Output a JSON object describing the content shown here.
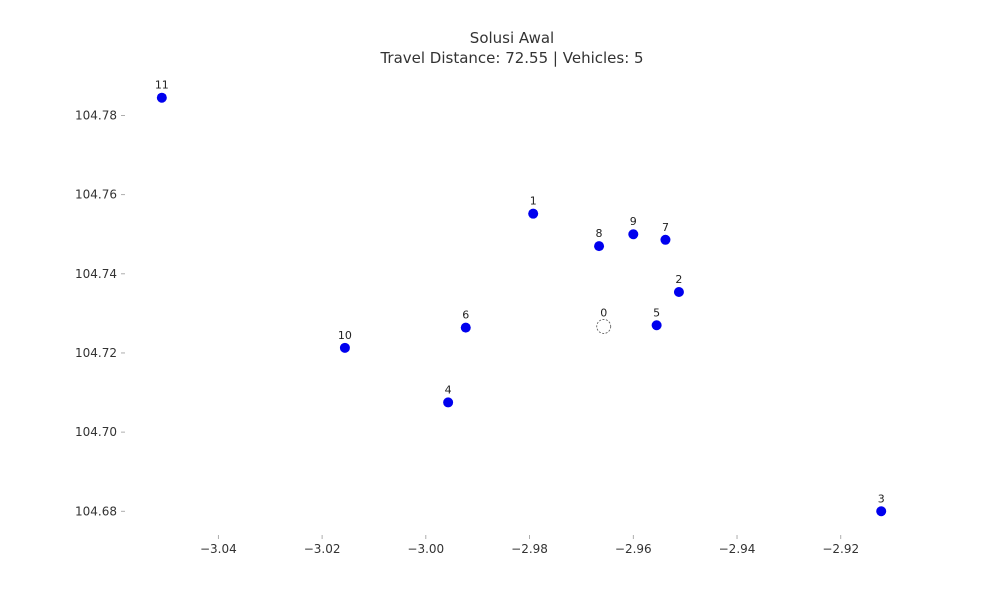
{
  "chart_data": {
    "type": "scatter",
    "title": "Solusi Awal",
    "subtitle": "Travel Distance: 72.55 | Vehicles: 5",
    "xlabel": "",
    "ylabel": "",
    "xlim": [
      -3.058,
      -2.908
    ],
    "ylim": [
      104.674,
      104.791
    ],
    "grid": false,
    "x_ticks": [
      {
        "value": -3.04,
        "label": "−3.04"
      },
      {
        "value": -3.02,
        "label": "−3.02"
      },
      {
        "value": -3.0,
        "label": "−3.00"
      },
      {
        "value": -2.98,
        "label": "−2.98"
      },
      {
        "value": -2.96,
        "label": "−2.96"
      },
      {
        "value": -2.94,
        "label": "−2.94"
      },
      {
        "value": -2.92,
        "label": "−2.92"
      }
    ],
    "y_ticks": [
      {
        "value": 104.68,
        "label": "104.68"
      },
      {
        "value": 104.7,
        "label": "104.70"
      },
      {
        "value": 104.72,
        "label": "104.72"
      },
      {
        "value": 104.74,
        "label": "104.74"
      },
      {
        "value": 104.76,
        "label": "104.76"
      },
      {
        "value": 104.78,
        "label": "104.78"
      }
    ],
    "depot": {
      "label": "0",
      "x": -2.9657,
      "y": 104.7267,
      "color": "#ffffff",
      "stroke": "#555555"
    },
    "points": [
      {
        "label": "1",
        "x": -2.9793,
        "y": 104.7552
      },
      {
        "label": "2",
        "x": -2.9512,
        "y": 104.7354
      },
      {
        "label": "3",
        "x": -2.9122,
        "y": 104.68
      },
      {
        "label": "4",
        "x": -2.9957,
        "y": 104.7075
      },
      {
        "label": "5",
        "x": -2.9555,
        "y": 104.727
      },
      {
        "label": "6",
        "x": -2.9923,
        "y": 104.7264
      },
      {
        "label": "7",
        "x": -2.9538,
        "y": 104.7486
      },
      {
        "label": "8",
        "x": -2.9666,
        "y": 104.747
      },
      {
        "label": "9",
        "x": -2.96,
        "y": 104.75
      },
      {
        "label": "10",
        "x": -3.0156,
        "y": 104.7213
      },
      {
        "label": "11",
        "x": -3.0509,
        "y": 104.7845
      }
    ],
    "point_color": "#0000ee"
  }
}
